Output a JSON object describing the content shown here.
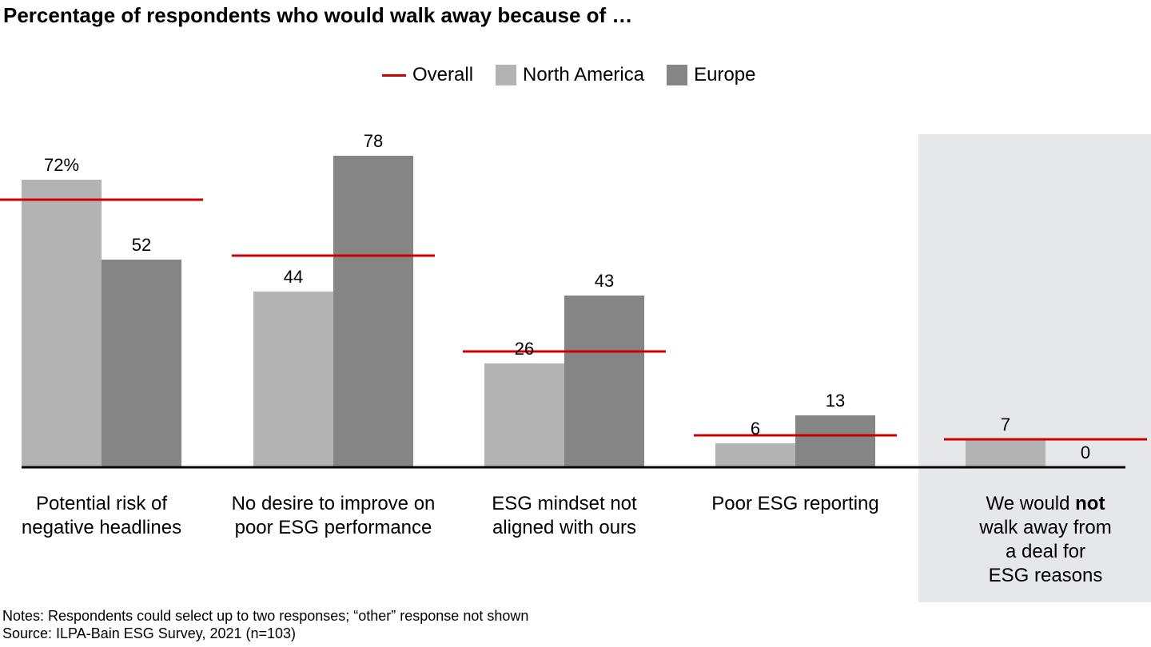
{
  "chart_data": {
    "type": "bar",
    "title": "Percentage of respondents who would walk away because of …",
    "legend": {
      "placement": "top-center"
    },
    "categories": [
      "Potential risk of negative headlines",
      "No desire to improve on poor ESG performance",
      "ESG mindset not aligned with ours",
      "Poor ESG reporting",
      "We would not walk away from a deal for ESG reasons"
    ],
    "category_label_lines": [
      [
        [
          "Potential risk of"
        ],
        [
          "negative headlines"
        ]
      ],
      [
        [
          "No desire to improve on"
        ],
        [
          "poor ESG performance"
        ]
      ],
      [
        [
          "ESG mindset not"
        ],
        [
          "aligned with ours"
        ]
      ],
      [
        [
          "Poor ESG reporting"
        ]
      ],
      [
        [
          "We would ",
          "not",
          ""
        ],
        [
          "walk away from"
        ],
        [
          "a deal for"
        ],
        [
          "ESG reasons"
        ]
      ]
    ],
    "series": [
      {
        "name": "North America",
        "values": [
          72,
          44,
          26,
          6,
          7
        ],
        "color": "#b3b3b3"
      },
      {
        "name": "Europe",
        "values": [
          52,
          78,
          43,
          13,
          0
        ],
        "color": "#858585"
      }
    ],
    "overall": {
      "name": "Overall",
      "values": [
        67,
        53,
        29,
        8,
        7
      ],
      "color": "#cc0000"
    },
    "data_labels": [
      [
        "72%",
        "44",
        "26",
        "6",
        "7"
      ],
      [
        "52",
        "78",
        "43",
        "13",
        "0"
      ]
    ],
    "highlighted_category": 4,
    "highlight_color": "#e6e7e9",
    "ylim": [
      0,
      80
    ],
    "xlabel": "",
    "ylabel": "",
    "grid": false
  },
  "footer": {
    "notes": "Notes: Respondents could select up to two responses; “other” response not shown",
    "source": "Source: ILPA-Bain ESG Survey, 2021 (n=103)"
  }
}
